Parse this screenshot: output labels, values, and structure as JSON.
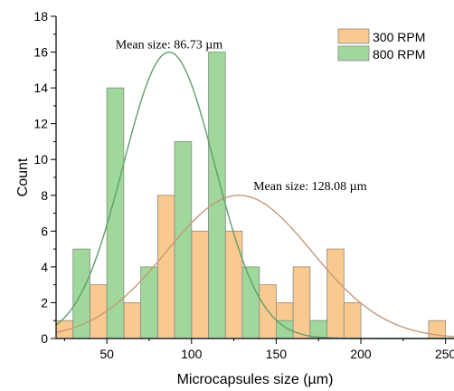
{
  "chart_data": {
    "type": "bar",
    "xlabel": "Microcapsules size (µm)",
    "ylabel": "Count",
    "xlim": [
      20,
      255
    ],
    "ylim": [
      0,
      18
    ],
    "x_ticks": [
      50,
      100,
      150,
      200,
      250
    ],
    "y_ticks": [
      0,
      2,
      4,
      6,
      8,
      10,
      12,
      14,
      16,
      18
    ],
    "bin_width": 10,
    "series": [
      {
        "name": "300 RPM",
        "color": "#f9c98f",
        "bins": [
          {
            "x": 25,
            "count": 1
          },
          {
            "x": 45,
            "count": 3
          },
          {
            "x": 65,
            "count": 2
          },
          {
            "x": 85,
            "count": 8
          },
          {
            "x": 105,
            "count": 6
          },
          {
            "x": 115,
            "count": 7
          },
          {
            "x": 125,
            "count": 6
          },
          {
            "x": 135,
            "count": 4
          },
          {
            "x": 145,
            "count": 3
          },
          {
            "x": 155,
            "count": 2
          },
          {
            "x": 165,
            "count": 4
          },
          {
            "x": 175,
            "count": 1
          },
          {
            "x": 185,
            "count": 5
          },
          {
            "x": 195,
            "count": 2
          },
          {
            "x": 245,
            "count": 1
          }
        ],
        "fit": {
          "mean": 128.08,
          "sigma": 43,
          "peak": 8,
          "color": "#c49a78"
        }
      },
      {
        "name": "800 RPM",
        "color": "#9fd89a",
        "bins": [
          {
            "x": 35,
            "count": 5
          },
          {
            "x": 55,
            "count": 14
          },
          {
            "x": 75,
            "count": 4
          },
          {
            "x": 95,
            "count": 11
          },
          {
            "x": 115,
            "count": 16
          },
          {
            "x": 135,
            "count": 4
          },
          {
            "x": 155,
            "count": 1
          },
          {
            "x": 175,
            "count": 1
          }
        ],
        "fit": {
          "mean": 86.73,
          "sigma": 27,
          "peak": 16,
          "color": "#5f9f6a"
        }
      }
    ],
    "annotations": [
      {
        "text": "Mean size: 86.73 µm",
        "x": 86.73,
        "y": 16.2
      },
      {
        "text": "Mean size: 128.08 µm",
        "x": 170,
        "y": 8.3
      }
    ],
    "legend": {
      "position": "top-right"
    },
    "grid": false
  }
}
